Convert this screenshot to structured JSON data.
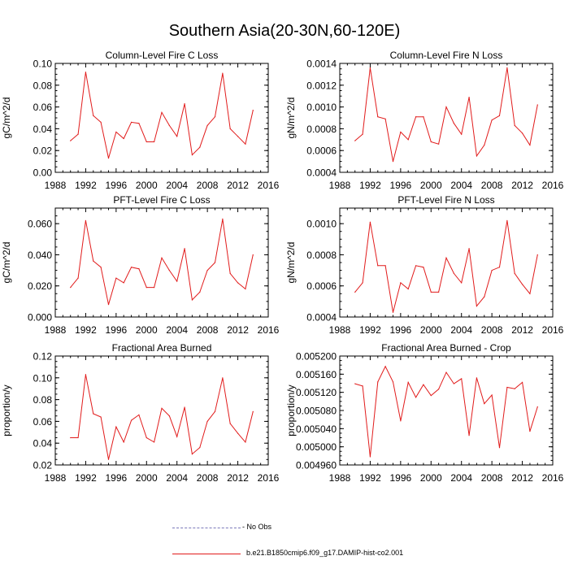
{
  "figure": {
    "title": "Southern Asia(20-30N,60-120E)"
  },
  "legend": {
    "obs_label": "- No Obs",
    "obs_color": "#7a79ba",
    "sim_label": "b.e21.B1850cmip6.f09_g17.DAMIP-hist-co2.001",
    "sim_color": "#e11b1b"
  },
  "chart_data": [
    {
      "type": "line",
      "title": "Column-Level Fire C Loss",
      "xlabel": "",
      "ylabel": "gC/m^2/d",
      "xlim": [
        1988,
        2016
      ],
      "xticks": [
        "1988",
        "1992",
        "1996",
        "2000",
        "2004",
        "2008",
        "2012",
        "2016"
      ],
      "ylim": [
        0.0,
        0.1
      ],
      "yticks": [
        "0.00",
        "0.02",
        "0.04",
        "0.06",
        "0.08",
        "0.10"
      ],
      "x": [
        1990,
        1991,
        1992,
        1993,
        1994,
        1995,
        1996,
        1997,
        1998,
        1999,
        2000,
        2001,
        2002,
        2003,
        2004,
        2005,
        2006,
        2007,
        2008,
        2009,
        2010,
        2011,
        2012,
        2013,
        2014
      ],
      "series": [
        {
          "values": [
            0.029,
            0.035,
            0.092,
            0.052,
            0.046,
            0.013,
            0.037,
            0.031,
            0.046,
            0.045,
            0.028,
            0.028,
            0.055,
            0.043,
            0.033,
            0.063,
            0.016,
            0.023,
            0.043,
            0.051,
            0.091,
            0.04,
            0.033,
            0.026,
            0.057
          ]
        }
      ]
    },
    {
      "type": "line",
      "title": "Column-Level Fire N Loss",
      "xlabel": "",
      "ylabel": "gN/m^2/d",
      "xlim": [
        1988,
        2016
      ],
      "xticks": [
        "1988",
        "1992",
        "1996",
        "2000",
        "2004",
        "2008",
        "2012",
        "2016"
      ],
      "ylim": [
        0.0004,
        0.0014
      ],
      "yticks": [
        "0.0004",
        "0.0006",
        "0.0008",
        "0.0010",
        "0.0012",
        "0.0014"
      ],
      "x": [
        1990,
        1991,
        1992,
        1993,
        1994,
        1995,
        1996,
        1997,
        1998,
        1999,
        2000,
        2001,
        2002,
        2003,
        2004,
        2005,
        2006,
        2007,
        2008,
        2009,
        2010,
        2011,
        2012,
        2013,
        2014
      ],
      "series": [
        {
          "values": [
            0.00069,
            0.00075,
            0.00136,
            0.00091,
            0.00089,
            0.0005,
            0.00077,
            0.0007,
            0.00091,
            0.00091,
            0.00068,
            0.00066,
            0.001,
            0.00085,
            0.00075,
            0.00109,
            0.00055,
            0.00065,
            0.00088,
            0.00092,
            0.00136,
            0.00083,
            0.00076,
            0.00065,
            0.00102
          ]
        }
      ]
    },
    {
      "type": "line",
      "title": "PFT-Level Fire C Loss",
      "xlabel": "",
      "ylabel": "gC/m^2/d",
      "xlim": [
        1988,
        2016
      ],
      "xticks": [
        "1988",
        "1992",
        "1996",
        "2000",
        "2004",
        "2008",
        "2012",
        "2016"
      ],
      "ylim": [
        0.0,
        0.07
      ],
      "yticks": [
        "0.000",
        "0.020",
        "0.040",
        "0.060"
      ],
      "x": [
        1990,
        1991,
        1992,
        1993,
        1994,
        1995,
        1996,
        1997,
        1998,
        1999,
        2000,
        2001,
        2002,
        2003,
        2004,
        2005,
        2006,
        2007,
        2008,
        2009,
        2010,
        2011,
        2012,
        2013,
        2014
      ],
      "series": [
        {
          "values": [
            0.019,
            0.025,
            0.062,
            0.036,
            0.032,
            0.008,
            0.025,
            0.022,
            0.032,
            0.031,
            0.019,
            0.019,
            0.038,
            0.03,
            0.023,
            0.044,
            0.011,
            0.016,
            0.03,
            0.035,
            0.063,
            0.028,
            0.022,
            0.018,
            0.04
          ]
        }
      ]
    },
    {
      "type": "line",
      "title": "PFT-Level Fire N Loss",
      "xlabel": "",
      "ylabel": "gN/m^2/d",
      "xlim": [
        1988,
        2016
      ],
      "xticks": [
        "1988",
        "1992",
        "1996",
        "2000",
        "2004",
        "2008",
        "2012",
        "2016"
      ],
      "ylim": [
        0.0004,
        0.0011
      ],
      "yticks": [
        "0.0004",
        "0.0006",
        "0.0008",
        "0.0010"
      ],
      "x": [
        1990,
        1991,
        1992,
        1993,
        1994,
        1995,
        1996,
        1997,
        1998,
        1999,
        2000,
        2001,
        2002,
        2003,
        2004,
        2005,
        2006,
        2007,
        2008,
        2009,
        2010,
        2011,
        2012,
        2013,
        2014
      ],
      "series": [
        {
          "values": [
            0.00056,
            0.00062,
            0.00101,
            0.00073,
            0.00073,
            0.00043,
            0.00062,
            0.00058,
            0.00073,
            0.00072,
            0.00056,
            0.00056,
            0.00078,
            0.00068,
            0.00062,
            0.00084,
            0.00047,
            0.00053,
            0.0007,
            0.00072,
            0.00102,
            0.00068,
            0.00061,
            0.00055,
            0.0008
          ]
        }
      ]
    },
    {
      "type": "line",
      "title": "Fractional Area Burned",
      "xlabel": "",
      "ylabel": "proportion/y",
      "xlim": [
        1988,
        2016
      ],
      "xticks": [
        "1988",
        "1992",
        "1996",
        "2000",
        "2004",
        "2008",
        "2012",
        "2016"
      ],
      "ylim": [
        0.02,
        0.12
      ],
      "yticks": [
        "0.02",
        "0.04",
        "0.06",
        "0.08",
        "0.10",
        "0.12"
      ],
      "x": [
        1990,
        1991,
        1992,
        1993,
        1994,
        1995,
        1996,
        1997,
        1998,
        1999,
        2000,
        2001,
        2002,
        2003,
        2004,
        2005,
        2006,
        2007,
        2008,
        2009,
        2010,
        2011,
        2012,
        2013,
        2014
      ],
      "series": [
        {
          "values": [
            0.045,
            0.045,
            0.103,
            0.067,
            0.064,
            0.025,
            0.055,
            0.041,
            0.061,
            0.066,
            0.045,
            0.041,
            0.072,
            0.065,
            0.046,
            0.073,
            0.03,
            0.036,
            0.06,
            0.069,
            0.1,
            0.058,
            0.049,
            0.041,
            0.069
          ]
        }
      ]
    },
    {
      "type": "line",
      "title": "Fractional Area Burned - Crop",
      "xlabel": "",
      "ylabel": "proportion/y",
      "xlim": [
        1988,
        2016
      ],
      "xticks": [
        "1988",
        "1992",
        "1996",
        "2000",
        "2004",
        "2008",
        "2012",
        "2016"
      ],
      "ylim": [
        0.00496,
        0.0052
      ],
      "yticks": [
        "0.004960",
        "0.005000",
        "0.005040",
        "0.005080",
        "0.005120",
        "0.005160",
        "0.005200"
      ],
      "x": [
        1990,
        1991,
        1992,
        1993,
        1994,
        1995,
        1996,
        1997,
        1998,
        1999,
        2000,
        2001,
        2002,
        2003,
        2004,
        2005,
        2006,
        2007,
        2008,
        2009,
        2010,
        2011,
        2012,
        2013,
        2014
      ],
      "series": [
        {
          "values": [
            0.005139,
            0.005134,
            0.004978,
            0.005143,
            0.005177,
            0.005143,
            0.005057,
            0.005142,
            0.005109,
            0.005137,
            0.005113,
            0.005127,
            0.005164,
            0.005139,
            0.00515,
            0.005025,
            0.005152,
            0.005095,
            0.005114,
            0.004998,
            0.005131,
            0.005128,
            0.005142,
            0.005034,
            0.005088
          ]
        }
      ]
    }
  ]
}
